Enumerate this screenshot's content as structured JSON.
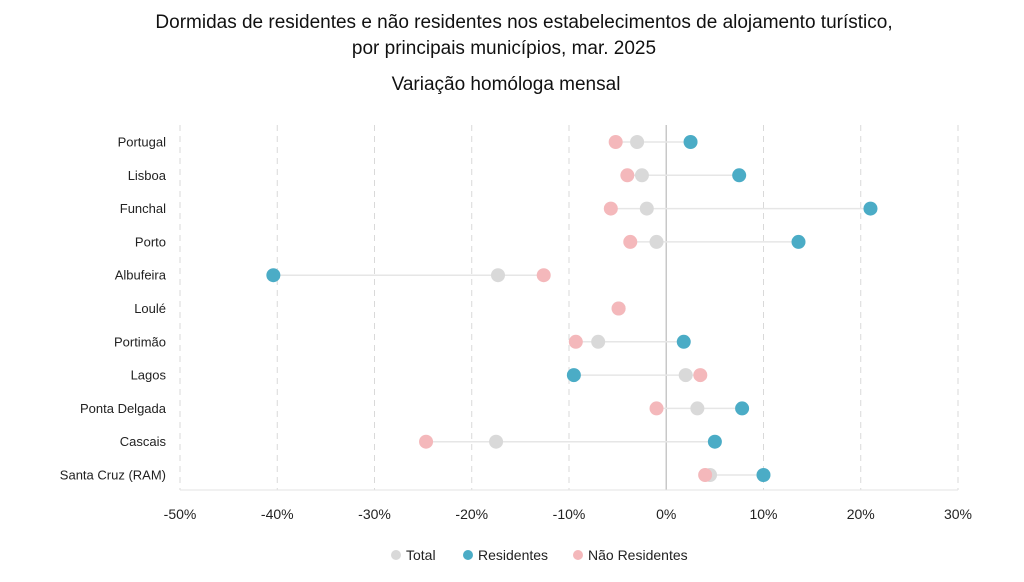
{
  "chart_data": {
    "type": "scatter",
    "title": "Dormidas de residentes e não residentes nos estabelecimentos de alojamento turístico,",
    "title_line2": "por principais municípios, mar. 2025",
    "subtitle": "Variação homóloga mensal",
    "categories": [
      "Portugal",
      "Lisboa",
      "Funchal",
      "Porto",
      "Albufeira",
      "Loulé",
      "Portimão",
      "Lagos",
      "Ponta Delgada",
      "Cascais",
      "Santa Cruz (RAM)"
    ],
    "xlim": [
      -50,
      30
    ],
    "xticks": [
      -50,
      -40,
      -30,
      -20,
      -10,
      0,
      10,
      20,
      30
    ],
    "xtick_labels": [
      "-50%",
      "-40%",
      "-30%",
      "-20%",
      "-10%",
      "0%",
      "10%",
      "20%",
      "30%"
    ],
    "grid": "vertical dashed",
    "legend_position": "bottom",
    "series": [
      {
        "name": "Total",
        "color": "#d9d9d9",
        "values": [
          -3.0,
          -2.5,
          -2.0,
          -1.0,
          -17.3,
          -4.9,
          -7.0,
          2.0,
          3.2,
          -17.5,
          4.5
        ]
      },
      {
        "name": "Residentes",
        "color": "#4bacc6",
        "values": [
          2.5,
          7.5,
          21.0,
          13.6,
          -40.4,
          null,
          1.8,
          -9.5,
          7.8,
          5.0,
          10.0
        ]
      },
      {
        "name": "Não Residentes",
        "color": "#f4b8bb",
        "values": [
          -5.2,
          -4.0,
          -5.7,
          -3.7,
          -12.6,
          -4.9,
          -9.3,
          3.5,
          -1.0,
          -24.7,
          4.0
        ]
      }
    ]
  }
}
